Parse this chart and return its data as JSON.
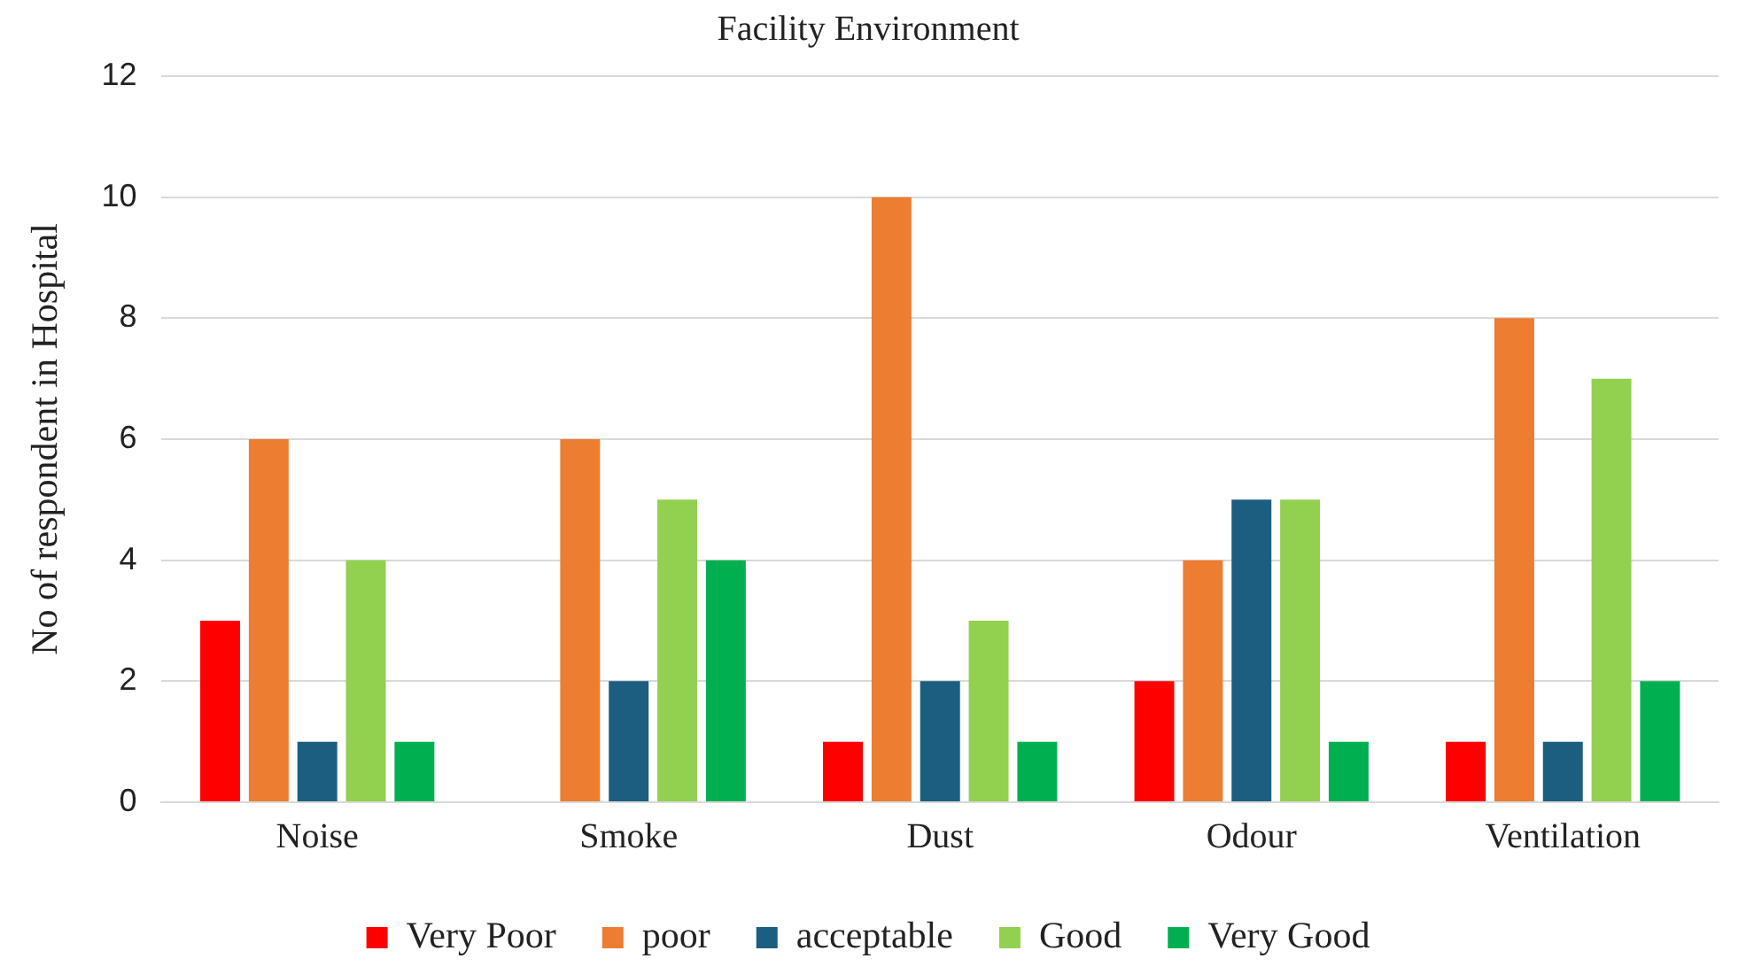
{
  "chart_data": {
    "type": "bar",
    "title": "Facility Environment",
    "ylabel": "No of respondent in Hospital",
    "categories": [
      "Noise",
      "Smoke",
      "Dust",
      "Odour",
      "Ventilation"
    ],
    "series": [
      {
        "name": "Very Poor",
        "color": "#ff0000",
        "values": [
          3,
          null,
          1,
          2,
          1
        ]
      },
      {
        "name": "poor",
        "color": "#ed7d31",
        "values": [
          6,
          6,
          10,
          4,
          8
        ]
      },
      {
        "name": "acceptable",
        "color": "#1b5e80",
        "values": [
          1,
          2,
          2,
          5,
          1
        ]
      },
      {
        "name": "Good",
        "color": "#92d050",
        "values": [
          4,
          5,
          3,
          5,
          7
        ]
      },
      {
        "name": "Very Good",
        "color": "#00b050",
        "values": [
          1,
          4,
          1,
          1,
          2
        ]
      }
    ],
    "ylim": [
      0,
      12
    ],
    "yticks": [
      0,
      2,
      4,
      6,
      8,
      10,
      12
    ],
    "grid": "y",
    "legend": "bottom"
  }
}
